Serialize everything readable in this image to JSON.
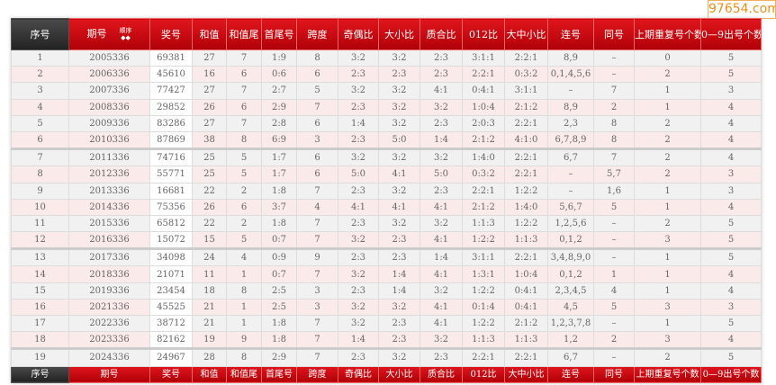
{
  "watermark": "97654.com",
  "columns": [
    "序号",
    "期号",
    "奖号",
    "和值",
    "和值尾",
    "首尾号",
    "跨度",
    "奇偶比",
    "大小比",
    "质合比",
    "012比",
    "大中小比",
    "连号",
    "同号",
    "上期重复号个数",
    "0—9出号个数"
  ],
  "sort_label": "顺序",
  "sort_icon": "◆◆",
  "rows": [
    [
      "1",
      "2005336",
      "69381",
      "27",
      "7",
      "1:9",
      "8",
      "3:2",
      "3:2",
      "2:3",
      "3:1:1",
      "2:2:1",
      "8,9",
      "–",
      "0",
      "5"
    ],
    [
      "2",
      "2006336",
      "45610",
      "16",
      "6",
      "0:6",
      "6",
      "2:3",
      "2:3",
      "2:3",
      "2:2:1",
      "0:3:2",
      "0,1,4,5,6",
      "–",
      "2",
      "5"
    ],
    [
      "3",
      "2007336",
      "77427",
      "27",
      "7",
      "2:7",
      "5",
      "3:2",
      "3:2",
      "4:1",
      "0:4:1",
      "3:1:1",
      "–",
      "7",
      "1",
      "3"
    ],
    [
      "4",
      "2008336",
      "29852",
      "26",
      "6",
      "2:9",
      "7",
      "2:3",
      "3:2",
      "3:2",
      "1:0:4",
      "2:1:2",
      "8,9",
      "2",
      "1",
      "4"
    ],
    [
      "5",
      "2009336",
      "83286",
      "27",
      "7",
      "2:8",
      "6",
      "1:4",
      "3:2",
      "2:3",
      "2:0:3",
      "2:2:1",
      "2,3",
      "8",
      "2",
      "4"
    ],
    [
      "6",
      "2010336",
      "87869",
      "38",
      "8",
      "6:9",
      "3",
      "2:3",
      "5:0",
      "1:4",
      "2:1:2",
      "4:1:0",
      "6,7,8,9",
      "8",
      "2",
      "4"
    ],
    [
      "7",
      "2011336",
      "74716",
      "25",
      "5",
      "1:7",
      "6",
      "3:2",
      "3:2",
      "3:2",
      "1:4:0",
      "2:2:1",
      "6,7",
      "7",
      "2",
      "4"
    ],
    [
      "8",
      "2012336",
      "55771",
      "25",
      "5",
      "1:7",
      "6",
      "5:0",
      "4:1",
      "5:0",
      "0:3:2",
      "2:2:1",
      "–",
      "5,7",
      "2",
      "3"
    ],
    [
      "9",
      "2013336",
      "16681",
      "22",
      "2",
      "1:8",
      "7",
      "2:3",
      "3:2",
      "2:3",
      "2:2:1",
      "1:2:2",
      "–",
      "1,6",
      "1",
      "3"
    ],
    [
      "10",
      "2014336",
      "75356",
      "26",
      "6",
      "3:7",
      "4",
      "4:1",
      "4:1",
      "4:1",
      "2:1:2",
      "1:4:0",
      "5,6,7",
      "5",
      "1",
      "4"
    ],
    [
      "11",
      "2015336",
      "65812",
      "22",
      "2",
      "1:8",
      "7",
      "2:3",
      "3:2",
      "3:2",
      "1:1:3",
      "1:2:2",
      "1,2,5,6",
      "–",
      "2",
      "5"
    ],
    [
      "12",
      "2016336",
      "15072",
      "15",
      "5",
      "0:7",
      "7",
      "3:2",
      "2:3",
      "4:1",
      "1:2:2",
      "1:1:3",
      "0,1,2",
      "–",
      "3",
      "5"
    ],
    [
      "13",
      "2017336",
      "34098",
      "24",
      "4",
      "0:9",
      "9",
      "2:3",
      "2:3",
      "1:4",
      "3:1:1",
      "2:2:1",
      "3,4,8,9,0",
      "–",
      "1",
      "5"
    ],
    [
      "14",
      "2018336",
      "21071",
      "11",
      "1",
      "0:7",
      "7",
      "3:2",
      "1:4",
      "4:1",
      "1:3:1",
      "1:0:4",
      "0,1,2",
      "1",
      "1",
      "4"
    ],
    [
      "15",
      "2019336",
      "23454",
      "18",
      "8",
      "2:5",
      "3",
      "2:3",
      "1:4",
      "3:2",
      "1:2:2",
      "0:4:1",
      "2,3,4,5",
      "4",
      "1",
      "4"
    ],
    [
      "16",
      "2021336",
      "45525",
      "21",
      "1",
      "2:5",
      "3",
      "3:2",
      "3:2",
      "4:1",
      "0:1:4",
      "0:4:1",
      "4,5",
      "5",
      "3",
      "3"
    ],
    [
      "17",
      "2022336",
      "38712",
      "21",
      "1",
      "1:8",
      "7",
      "3:2",
      "2:3",
      "4:1",
      "1:2:2",
      "2:1:2",
      "1,2,3,7,8",
      "–",
      "1",
      "5"
    ],
    [
      "18",
      "2023336",
      "82162",
      "19",
      "9",
      "1:8",
      "7",
      "1:4",
      "2:3",
      "3:2",
      "1:1:3",
      "1:1:3",
      "1,2",
      "2",
      "3",
      "4"
    ],
    [
      "19",
      "2024336",
      "24967",
      "28",
      "8",
      "2:9",
      "7",
      "2:3",
      "3:2",
      "2:3",
      "2:2:1",
      "2:2:1",
      "6,7",
      "–",
      "2",
      "5"
    ]
  ],
  "colors": {
    "header_red": "#c8000a",
    "header_dark": "#333333",
    "row_gray": "#f1f1f1",
    "row_pink": "#fbeaea",
    "watermark": "#e8901a"
  }
}
